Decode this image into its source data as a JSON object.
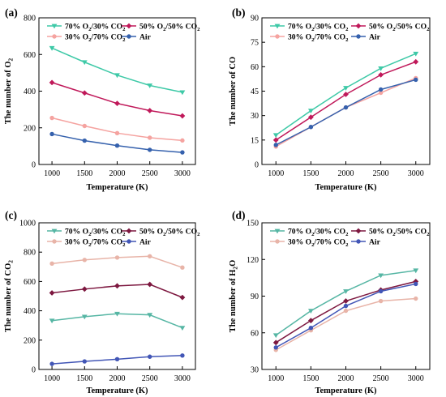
{
  "chart_data": [
    {
      "type": "line",
      "panel_label": "(a)",
      "xlabel": "Temperature (K)",
      "ylabel": "The number of O<sub>2</sub>",
      "x": [
        1000,
        1500,
        2000,
        2500,
        3000
      ],
      "xticks": [
        "1000",
        "1500",
        "2000",
        "2500",
        "3000"
      ],
      "xlim": [
        800,
        3200
      ],
      "ylim": [
        0,
        800
      ],
      "yticks": [
        0,
        200,
        400,
        600,
        800
      ],
      "grid": false,
      "legend": "top",
      "series": [
        {
          "name": "70% O<sub>2</sub>/30% CO<sub>2</sub>",
          "color": "#3ec9a7",
          "marker": "tri-down",
          "values": [
            635,
            558,
            487,
            431,
            394
          ]
        },
        {
          "name": "50% O<sub>2</sub>/50% CO<sub>2</sub>",
          "color": "#c0195a",
          "marker": "diamond",
          "values": [
            447,
            390,
            333,
            294,
            265
          ]
        },
        {
          "name": "30% O<sub>2</sub>/70% CO<sub>2</sub>",
          "color": "#f5a3a0",
          "marker": "circle",
          "values": [
            254,
            210,
            171,
            146,
            131
          ]
        },
        {
          "name": "Air",
          "color": "#3561ad",
          "marker": "circle",
          "values": [
            166,
            130,
            103,
            80,
            66
          ]
        }
      ]
    },
    {
      "type": "line",
      "panel_label": "(b)",
      "xlabel": "Temperature (K)",
      "ylabel": "The number of CO",
      "x": [
        1000,
        1500,
        2000,
        2500,
        3000
      ],
      "xticks": [
        "1000",
        "1500",
        "2000",
        "2500",
        "3000"
      ],
      "xlim": [
        800,
        3200
      ],
      "ylim": [
        0,
        90
      ],
      "yticks": [
        0,
        15,
        30,
        45,
        60,
        75,
        90
      ],
      "grid": false,
      "legend": "top",
      "series": [
        {
          "name": "70% O<sub>2</sub>/30% CO<sub>2</sub>",
          "color": "#3ec9a7",
          "marker": "tri-down",
          "values": [
            18,
            33,
            47,
            59,
            68
          ]
        },
        {
          "name": "50% O<sub>2</sub>/50% CO<sub>2</sub>",
          "color": "#c0195a",
          "marker": "diamond",
          "values": [
            15,
            29,
            43,
            55,
            63
          ]
        },
        {
          "name": "30% O<sub>2</sub>/70% CO<sub>2</sub>",
          "color": "#f5a3a0",
          "marker": "circle",
          "values": [
            11,
            23,
            35,
            44,
            53
          ]
        },
        {
          "name": "Air",
          "color": "#3561ad",
          "marker": "circle",
          "values": [
            12,
            23,
            35,
            46,
            52
          ]
        }
      ]
    },
    {
      "type": "line",
      "panel_label": "(c)",
      "xlabel": "Temperature (K)",
      "ylabel": "The number of CO<sub>2</sub>",
      "x": [
        1000,
        1500,
        2000,
        2500,
        3000
      ],
      "xticks": [
        "1000",
        "1500",
        "2000",
        "2500",
        "3000"
      ],
      "xlim": [
        800,
        3200
      ],
      "ylim": [
        0,
        1000
      ],
      "yticks": [
        0,
        200,
        400,
        600,
        800,
        1000
      ],
      "grid": false,
      "legend": "top",
      "series": [
        {
          "name": "70% O<sub>2</sub>/30% CO<sub>2</sub>",
          "color": "#56b6a4",
          "marker": "tri-down",
          "values": [
            333,
            360,
            380,
            372,
            284
          ]
        },
        {
          "name": "50% O<sub>2</sub>/50% CO<sub>2</sub>",
          "color": "#7d1840",
          "marker": "diamond",
          "values": [
            522,
            548,
            570,
            580,
            491
          ]
        },
        {
          "name": "30% O<sub>2</sub>/70% CO<sub>2</sub>",
          "color": "#e8b4a8",
          "marker": "circle",
          "values": [
            722,
            747,
            763,
            772,
            695
          ]
        },
        {
          "name": "Air",
          "color": "#4256b6",
          "marker": "circle",
          "values": [
            38,
            55,
            70,
            87,
            95
          ]
        }
      ]
    },
    {
      "type": "line",
      "panel_label": "(d)",
      "xlabel": "Temperature (K)",
      "ylabel": "The number of H<sub>2</sub>O",
      "x": [
        1000,
        1500,
        2000,
        2500,
        3000
      ],
      "xticks": [
        "1000",
        "1500",
        "2000",
        "2500",
        "3000"
      ],
      "xlim": [
        800,
        3200
      ],
      "ylim": [
        30,
        150
      ],
      "yticks": [
        30,
        60,
        90,
        120,
        150
      ],
      "grid": false,
      "legend": "top",
      "series": [
        {
          "name": "70% O<sub>2</sub>/30% CO<sub>2</sub>",
          "color": "#56b6a4",
          "marker": "tri-down",
          "values": [
            58,
            78,
            94,
            107,
            111
          ]
        },
        {
          "name": "50% O<sub>2</sub>/50% CO<sub>2</sub>",
          "color": "#7d1840",
          "marker": "diamond",
          "values": [
            52,
            70,
            86,
            95,
            102
          ]
        },
        {
          "name": "30% O<sub>2</sub>/70% CO<sub>2</sub>",
          "color": "#e8b4a8",
          "marker": "circle",
          "values": [
            46,
            62,
            78,
            86,
            88
          ]
        },
        {
          "name": "Air",
          "color": "#4256b6",
          "marker": "circle",
          "values": [
            48,
            64,
            82,
            94,
            100
          ]
        }
      ]
    }
  ]
}
